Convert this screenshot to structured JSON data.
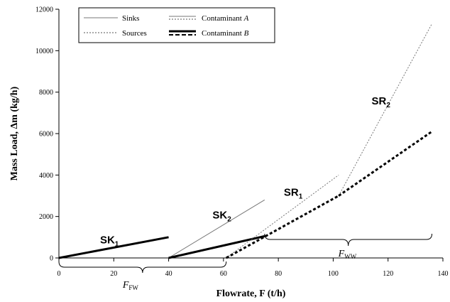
{
  "chart_data": {
    "type": "line",
    "xlabel": "Flowrate, F (t/h)",
    "ylabel": "Mass Load, Δm (kg/h)",
    "xlim": [
      0,
      140
    ],
    "ylim": [
      0,
      12000
    ],
    "x_ticks": [
      "0",
      "20",
      "40",
      "60",
      "80",
      "100",
      "120",
      "140"
    ],
    "y_ticks": [
      "0",
      "2000",
      "4000",
      "6000",
      "8000",
      "10000",
      "12000"
    ],
    "grid": false,
    "legend": {
      "placement": "top-left",
      "entries": [
        {
          "label": "Sinks",
          "style": "solid-thin"
        },
        {
          "label": "Sources",
          "style": "dotted-thin"
        },
        {
          "label": "Contaminant A",
          "style": "thin"
        },
        {
          "label": "Contaminant B",
          "style": "thick"
        }
      ]
    },
    "series": [
      {
        "name": "SK1",
        "kind": "sink",
        "contaminant": "B",
        "x": [
          0,
          40
        ],
        "y": [
          0,
          1000
        ]
      },
      {
        "name": "SK2",
        "kind": "sink",
        "contaminant": "A",
        "x": [
          40,
          75
        ],
        "y": [
          0,
          2800
        ]
      },
      {
        "name": "SK2",
        "kind": "sink",
        "contaminant": "B",
        "x": [
          40,
          75
        ],
        "y": [
          0,
          1050
        ]
      },
      {
        "name": "SR1",
        "kind": "source",
        "contaminant": "A",
        "x": [
          61,
          102
        ],
        "y": [
          0,
          4000
        ]
      },
      {
        "name": "SR1",
        "kind": "source",
        "contaminant": "B",
        "x": [
          61,
          102
        ],
        "y": [
          0,
          3000
        ]
      },
      {
        "name": "SR2",
        "kind": "source",
        "contaminant": "A",
        "x": [
          102,
          136
        ],
        "y": [
          3000,
          11300
        ]
      },
      {
        "name": "SR2",
        "kind": "source",
        "contaminant": "B",
        "x": [
          102,
          136
        ],
        "y": [
          3000,
          6100
        ]
      }
    ],
    "annotations": [
      {
        "text": "SK",
        "sub": "1",
        "at_x": 15,
        "at_y": 700
      },
      {
        "text": "SK",
        "sub": "2",
        "at_x": 56,
        "at_y": 1900
      },
      {
        "text": "SR",
        "sub": "1",
        "at_x": 82,
        "at_y": 3000
      },
      {
        "text": "SR",
        "sub": "2",
        "at_x": 114,
        "at_y": 7400
      }
    ],
    "braces": [
      {
        "label": "F",
        "sub": "FW",
        "x_range": [
          0,
          61
        ]
      },
      {
        "label": "F",
        "sub": "WW",
        "x_range": [
          75,
          136
        ]
      }
    ]
  }
}
